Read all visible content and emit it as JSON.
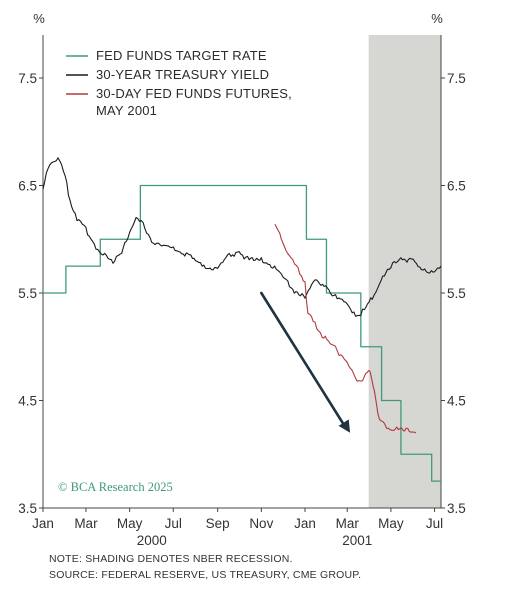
{
  "chart_data": {
    "type": "line",
    "y_unit_left": "%",
    "y_unit_right": "%",
    "y_ticks": [
      "3.5",
      "4.5",
      "5.5",
      "6.5",
      "7.5"
    ],
    "y_ticks_right": [
      "3.5",
      "4.5",
      "5.5",
      "6.5",
      "7.5"
    ],
    "ylim": [
      3.5,
      7.9
    ],
    "x_range": [
      "2000-01-01",
      "2001-07-10"
    ],
    "x_ticks": [
      {
        "label": "Jan",
        "date": "2000-01-01"
      },
      {
        "label": "Mar",
        "date": "2000-03-01"
      },
      {
        "label": "May",
        "date": "2000-05-01"
      },
      {
        "label": "Jul",
        "date": "2000-07-01"
      },
      {
        "label": "Sep",
        "date": "2000-09-01"
      },
      {
        "label": "Nov",
        "date": "2000-11-01"
      },
      {
        "label": "Jan",
        "date": "2001-01-01"
      },
      {
        "label": "Mar",
        "date": "2001-03-01"
      },
      {
        "label": "May",
        "date": "2001-05-01"
      },
      {
        "label": "Jul",
        "date": "2001-07-01"
      }
    ],
    "year_labels": [
      {
        "label": "2000",
        "date": "2000-06-01"
      },
      {
        "label": "2001",
        "date": "2001-03-15"
      }
    ],
    "recession_shading": {
      "start": "2001-03-31",
      "end": "2001-07-10",
      "color": "#d6d6d3"
    },
    "arrow": {
      "from": {
        "date": "2000-11-01",
        "value": 5.5
      },
      "to": {
        "date": "2001-03-05",
        "value": 4.2
      },
      "color": "#1f3340"
    },
    "watermark": "© BCA Research 2025",
    "series": [
      {
        "name": "FED FUNDS TARGET RATE",
        "color": "#3f9a78",
        "step": true,
        "points": [
          [
            "2000-01-01",
            5.5
          ],
          [
            "2000-02-02",
            5.75
          ],
          [
            "2000-03-21",
            6.0
          ],
          [
            "2000-05-16",
            6.5
          ],
          [
            "2001-01-03",
            6.0
          ],
          [
            "2001-01-31",
            5.5
          ],
          [
            "2001-03-20",
            5.0
          ],
          [
            "2001-04-18",
            4.5
          ],
          [
            "2001-05-15",
            4.0
          ],
          [
            "2001-06-27",
            3.75
          ],
          [
            "2001-07-10",
            3.75
          ]
        ]
      },
      {
        "name": "30-YEAR TREASURY YIELD",
        "color": "#1c1c1c",
        "points": [
          [
            "2000-01-01",
            6.48
          ],
          [
            "2000-01-08",
            6.62
          ],
          [
            "2000-01-15",
            6.72
          ],
          [
            "2000-01-22",
            6.75
          ],
          [
            "2000-02-01",
            6.55
          ],
          [
            "2000-02-10",
            6.3
          ],
          [
            "2000-02-20",
            6.15
          ],
          [
            "2000-03-01",
            6.08
          ],
          [
            "2000-03-10",
            5.98
          ],
          [
            "2000-03-20",
            5.85
          ],
          [
            "2000-04-01",
            5.82
          ],
          [
            "2000-04-10",
            5.78
          ],
          [
            "2000-04-20",
            5.85
          ],
          [
            "2000-05-01",
            6.05
          ],
          [
            "2000-05-10",
            6.18
          ],
          [
            "2000-05-20",
            6.12
          ],
          [
            "2000-06-01",
            5.98
          ],
          [
            "2000-06-15",
            5.9
          ],
          [
            "2000-07-01",
            5.92
          ],
          [
            "2000-07-15",
            5.86
          ],
          [
            "2000-08-01",
            5.78
          ],
          [
            "2000-08-15",
            5.74
          ],
          [
            "2000-09-01",
            5.7
          ],
          [
            "2000-09-15",
            5.82
          ],
          [
            "2000-10-01",
            5.88
          ],
          [
            "2000-10-15",
            5.78
          ],
          [
            "2000-11-01",
            5.8
          ],
          [
            "2000-11-15",
            5.75
          ],
          [
            "2000-12-01",
            5.62
          ],
          [
            "2000-12-15",
            5.52
          ],
          [
            "2001-01-01",
            5.45
          ],
          [
            "2001-01-15",
            5.6
          ],
          [
            "2001-02-01",
            5.55
          ],
          [
            "2001-02-15",
            5.42
          ],
          [
            "2001-03-01",
            5.38
          ],
          [
            "2001-03-15",
            5.28
          ],
          [
            "2001-03-25",
            5.32
          ],
          [
            "2001-04-05",
            5.45
          ],
          [
            "2001-04-15",
            5.58
          ],
          [
            "2001-05-01",
            5.72
          ],
          [
            "2001-05-15",
            5.82
          ],
          [
            "2001-06-01",
            5.78
          ],
          [
            "2001-06-15",
            5.68
          ],
          [
            "2001-07-01",
            5.7
          ],
          [
            "2001-07-10",
            5.75
          ]
        ]
      },
      {
        "name": "30-DAY FED FUNDS FUTURES, MAY 2001",
        "color": "#b03a3a",
        "points": [
          [
            "2000-11-20",
            6.12
          ],
          [
            "2000-12-01",
            5.98
          ],
          [
            "2000-12-10",
            5.82
          ],
          [
            "2000-12-20",
            5.72
          ],
          [
            "2001-01-01",
            5.6
          ],
          [
            "2001-01-05",
            5.28
          ],
          [
            "2001-01-15",
            5.2
          ],
          [
            "2001-01-25",
            5.1
          ],
          [
            "2001-02-05",
            5.0
          ],
          [
            "2001-02-15",
            4.95
          ],
          [
            "2001-02-25",
            4.88
          ],
          [
            "2001-03-05",
            4.78
          ],
          [
            "2001-03-15",
            4.68
          ],
          [
            "2001-03-25",
            4.7
          ],
          [
            "2001-04-02",
            4.75
          ],
          [
            "2001-04-08",
            4.58
          ],
          [
            "2001-04-15",
            4.3
          ],
          [
            "2001-04-25",
            4.25
          ],
          [
            "2001-05-05",
            4.22
          ],
          [
            "2001-05-20",
            4.2
          ],
          [
            "2001-06-05",
            4.2
          ]
        ]
      }
    ],
    "legend": [
      {
        "label_lines": [
          "FED FUNDS TARGET RATE"
        ],
        "color": "#3f9a78"
      },
      {
        "label_lines": [
          "30-YEAR TREASURY YIELD"
        ],
        "color": "#1c1c1c"
      },
      {
        "label_lines": [
          "30-DAY FED FUNDS FUTURES,",
          "MAY 2001"
        ],
        "color": "#b03a3a"
      }
    ],
    "legend_position": "top-left"
  },
  "notes": {
    "line1": "NOTE: SHADING DENOTES NBER RECESSION.",
    "line2": "SOURCE: FEDERAL RESERVE, US TREASURY, CME GROUP."
  }
}
